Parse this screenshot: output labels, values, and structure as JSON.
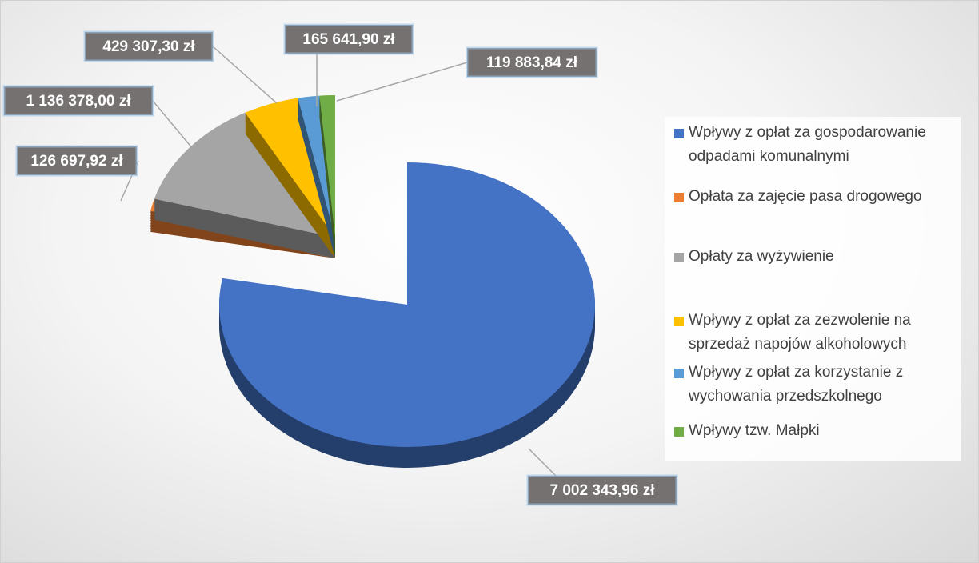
{
  "chart_data": {
    "type": "pie",
    "categories": [
      "Wpływy z opłat za gospodarowanie odpadami komunalnymi",
      "Opłata za zajęcie pasa drogowego",
      "Opłaty za wyżywienie",
      "Wpływy z opłat za zezwolenie na sprzedaż napojów alkoholowych",
      "Wpływy z opłat za korzystanie z wychowania przedszkolnego",
      "Wpływy tzw. Małpki"
    ],
    "values": [
      7002343.96,
      126697.92,
      1136378.0,
      429307.3,
      165641.9,
      119883.84
    ],
    "value_labels": [
      "7 002 343,96 zł",
      "126 697,92 zł",
      "1 136 378,00 zł",
      "429 307,30 zł",
      "165 641,90 zł",
      "119 883,84 zł"
    ],
    "colors": [
      "#4472c4",
      "#ed7d31",
      "#a5a5a5",
      "#ffc000",
      "#5b9bd5",
      "#70ad47"
    ],
    "legend": "right"
  }
}
